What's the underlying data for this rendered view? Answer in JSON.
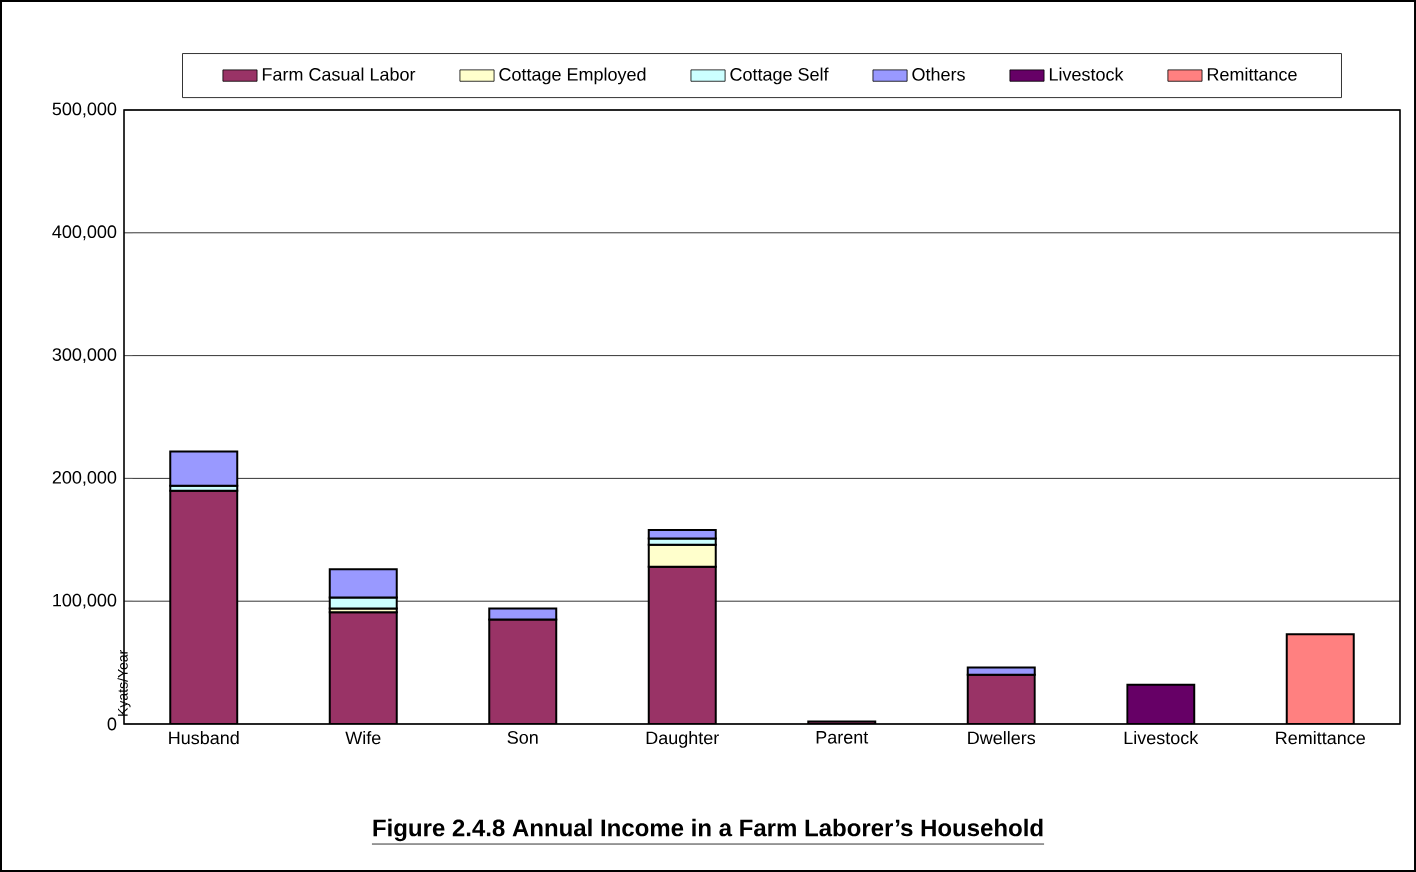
{
  "chart_data": {
    "type": "bar",
    "stacked": true,
    "title": "Figure 2.4.8 Annual Income in a Farm Laborer’s Household",
    "ylabel": "Kyats/Year",
    "categories": [
      "Husband",
      "Wife",
      "Son",
      "Daughter",
      "Parent",
      "Dwellers",
      "Livestock",
      "Remittance"
    ],
    "series": [
      {
        "name": "Farm Casual Labor",
        "color": "#993366",
        "values": [
          190000,
          91000,
          85000,
          128000,
          2000,
          40000,
          null,
          null
        ]
      },
      {
        "name": "Cottage Employed",
        "color": "#ffffcc",
        "values": [
          null,
          3000,
          null,
          18000,
          null,
          null,
          null,
          null
        ]
      },
      {
        "name": "Cottage Self",
        "color": "#ccffff",
        "values": [
          4000,
          9000,
          null,
          5000,
          null,
          null,
          null,
          null
        ]
      },
      {
        "name": "Others",
        "color": "#9999ff",
        "values": [
          28000,
          23000,
          9000,
          7000,
          null,
          6000,
          null,
          null
        ]
      },
      {
        "name": "Livestock",
        "color": "#660066",
        "values": [
          null,
          null,
          null,
          null,
          null,
          null,
          32000,
          null
        ]
      },
      {
        "name": "Remittance",
        "color": "#ff8080",
        "values": [
          null,
          null,
          null,
          null,
          null,
          null,
          null,
          73000
        ]
      }
    ],
    "ylim": [
      0,
      500000
    ],
    "yticks": [
      {
        "value": 0,
        "label": "0"
      },
      {
        "value": 100000,
        "label": "100,000"
      },
      {
        "value": 200000,
        "label": "200,000"
      },
      {
        "value": 300000,
        "label": "300,000"
      },
      {
        "value": 400000,
        "label": "400,000"
      },
      {
        "value": 500000,
        "label": "500,000"
      }
    ],
    "grid": "y",
    "legend": "top"
  }
}
